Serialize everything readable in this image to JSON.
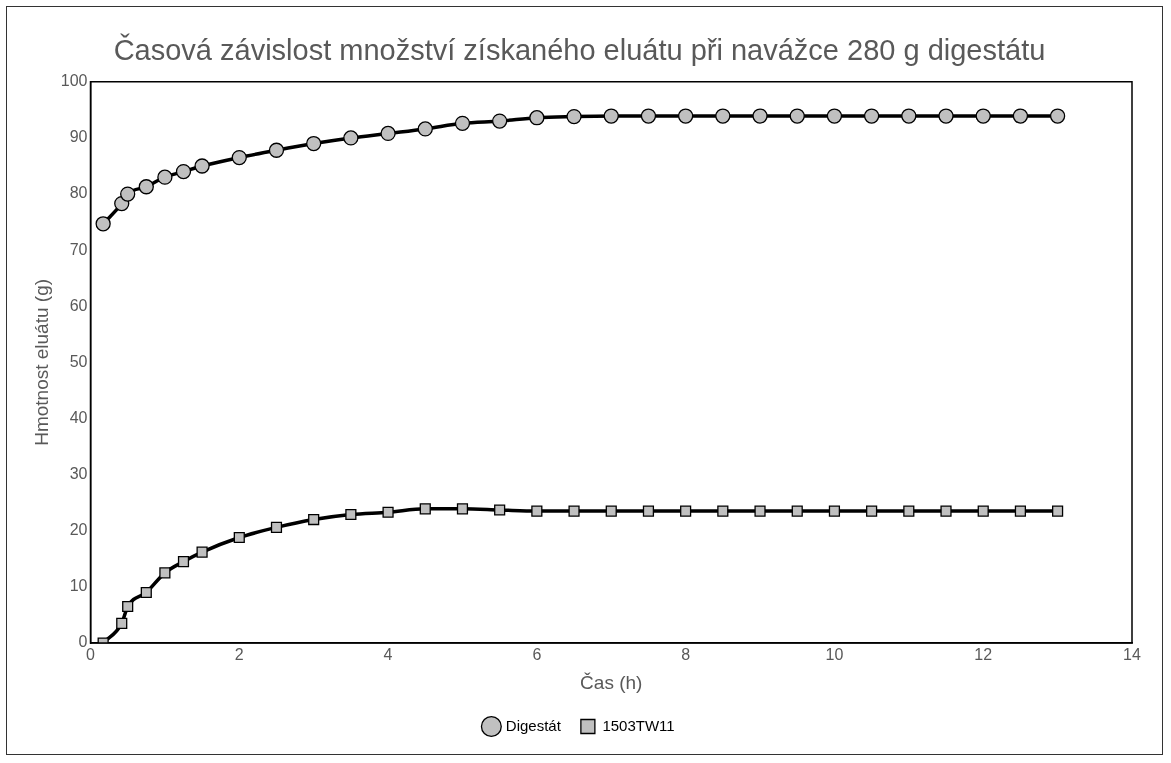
{
  "chart_data": {
    "type": "line",
    "title": "Časová závislost množství získaného eluátu při navážce 280 g digestátu",
    "xlabel": "Čas (h)",
    "ylabel": "Hmotnost eluátu (g)",
    "x": [
      0.17,
      0.42,
      0.5,
      0.75,
      1,
      1.25,
      1.5,
      2,
      2.5,
      3,
      3.5,
      4,
      4.5,
      5,
      5.5,
      6,
      6.5,
      7,
      7.5,
      8,
      8.5,
      9,
      9.5,
      10,
      10.5,
      11,
      11.5,
      12,
      12.5,
      13
    ],
    "series": [
      {
        "name": "Digestát",
        "color": "#c0c0c0",
        "marker": "circle",
        "values": [
          74.7,
          78.3,
          80,
          81.3,
          83,
          84,
          85,
          86.5,
          87.8,
          89,
          90,
          90.8,
          91.6,
          92.6,
          93,
          93.6,
          93.8,
          93.9,
          93.9,
          93.9,
          93.9,
          93.9,
          93.9,
          93.9,
          93.9,
          93.9,
          93.9,
          93.9,
          93.9,
          93.9
        ]
      },
      {
        "name": "1503TW11",
        "color": "#c0c0c0",
        "marker": "square",
        "values": [
          0,
          3.5,
          6.5,
          9,
          12.5,
          14.5,
          16.2,
          18.8,
          20.6,
          22,
          22.9,
          23.3,
          23.9,
          23.9,
          23.7,
          23.5,
          23.5,
          23.5,
          23.5,
          23.5,
          23.5,
          23.5,
          23.5,
          23.5,
          23.5,
          23.5,
          23.5,
          23.5,
          23.5,
          23.5
        ]
      }
    ],
    "xlim": [
      0,
      14
    ],
    "xticks": [
      0,
      2,
      4,
      6,
      8,
      10,
      12,
      14
    ],
    "ylim": [
      0,
      100
    ],
    "yticks": [
      0,
      10,
      20,
      30,
      40,
      50,
      60,
      70,
      80,
      90,
      100
    ],
    "grid": false,
    "legend": "bottom"
  }
}
